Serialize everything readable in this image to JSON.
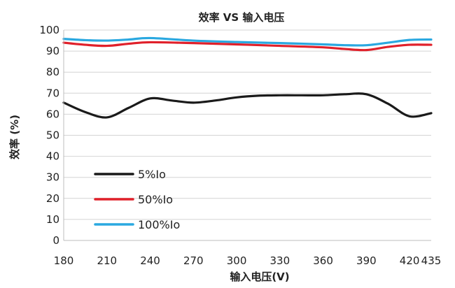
{
  "chart_data": {
    "type": "line",
    "title": "效率 VS 输入电压",
    "xlabel": "输入电压(V)",
    "ylabel": "效率 (%)",
    "xlim": [
      180,
      435
    ],
    "ylim": [
      0,
      100
    ],
    "x_ticks": [
      "180",
      "210",
      "240",
      "270",
      "300",
      "330",
      "360",
      "390",
      "420",
      "435"
    ],
    "y_ticks": [
      "0",
      "10",
      "20",
      "30",
      "40",
      "50",
      "60",
      "70",
      "80",
      "90",
      "100"
    ],
    "grid": "horizontal",
    "legend_position": "bottom-left",
    "series": [
      {
        "name": "5%Io",
        "color": "#1a1a1a",
        "points": [
          [
            180,
            65.5
          ],
          [
            195,
            61
          ],
          [
            210,
            58.5
          ],
          [
            225,
            63
          ],
          [
            240,
            67.5
          ],
          [
            255,
            66.5
          ],
          [
            270,
            65.5
          ],
          [
            285,
            66.5
          ],
          [
            300,
            68
          ],
          [
            315,
            68.8
          ],
          [
            330,
            69
          ],
          [
            345,
            69
          ],
          [
            360,
            69
          ],
          [
            375,
            69.5
          ],
          [
            390,
            69.5
          ],
          [
            405,
            65
          ],
          [
            420,
            59
          ],
          [
            435,
            60.5
          ]
        ]
      },
      {
        "name": "50%Io",
        "color": "#e0202a",
        "points": [
          [
            180,
            94
          ],
          [
            195,
            93
          ],
          [
            210,
            92.5
          ],
          [
            225,
            93.5
          ],
          [
            240,
            94.2
          ],
          [
            270,
            93.8
          ],
          [
            300,
            93.2
          ],
          [
            330,
            92.5
          ],
          [
            360,
            91.8
          ],
          [
            375,
            91
          ],
          [
            390,
            90.5
          ],
          [
            405,
            92
          ],
          [
            420,
            93
          ],
          [
            435,
            93
          ]
        ]
      },
      {
        "name": "100%Io",
        "color": "#2aa8e0",
        "points": [
          [
            180,
            95.8
          ],
          [
            195,
            95.2
          ],
          [
            210,
            95
          ],
          [
            225,
            95.5
          ],
          [
            240,
            96.2
          ],
          [
            270,
            95
          ],
          [
            300,
            94.3
          ],
          [
            330,
            93.8
          ],
          [
            360,
            93.2
          ],
          [
            375,
            92.8
          ],
          [
            390,
            92.8
          ],
          [
            405,
            94
          ],
          [
            420,
            95.3
          ],
          [
            435,
            95.5
          ]
        ]
      }
    ]
  }
}
